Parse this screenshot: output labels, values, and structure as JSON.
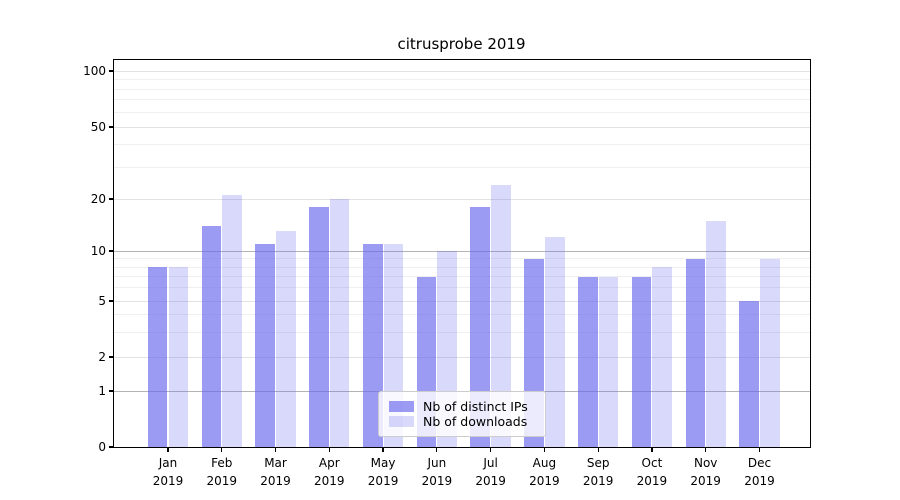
{
  "chart_data": {
    "type": "bar",
    "title": "citrusprobe 2019",
    "categories": [
      "Jan 2019",
      "Feb 2019",
      "Mar 2019",
      "Apr 2019",
      "May 2019",
      "Jun 2019",
      "Jul 2019",
      "Aug 2019",
      "Sep 2019",
      "Oct 2019",
      "Nov 2019",
      "Dec 2019"
    ],
    "series": [
      {
        "name": "Nb of distinct IPs",
        "values": [
          8,
          14,
          11,
          18,
          11,
          7,
          18,
          9,
          7,
          7,
          9,
          5
        ],
        "base_color": "#6666ee",
        "alpha": 0.65,
        "effective_color": "#a8a8f4"
      },
      {
        "name": "Nb of downloads",
        "values": [
          8,
          21,
          13,
          20,
          11,
          10,
          24,
          12,
          7,
          8,
          15,
          9
        ],
        "base_color": "#6666ee",
        "alpha": 0.25,
        "effective_color": "#d9d9fa"
      }
    ],
    "xlabel": "",
    "ylabel": "",
    "yscale": "asinh-like (log above 1, linear near 0)",
    "yticks": [
      0,
      1,
      2,
      5,
      10,
      20,
      50,
      100
    ],
    "minor_yticks": [
      3,
      4,
      6,
      7,
      8,
      9,
      30,
      40,
      60,
      70,
      80,
      90
    ],
    "ylim": [
      0,
      110
    ],
    "grid": true,
    "legend_position": "lower center"
  },
  "colors": {
    "gridline_major": "#b4b4b4",
    "gridline_mid": "#e2e2e2",
    "gridline_minor": "#efefef",
    "axis": "#000000",
    "legend_border": "#cccccc",
    "text": "#000000"
  }
}
